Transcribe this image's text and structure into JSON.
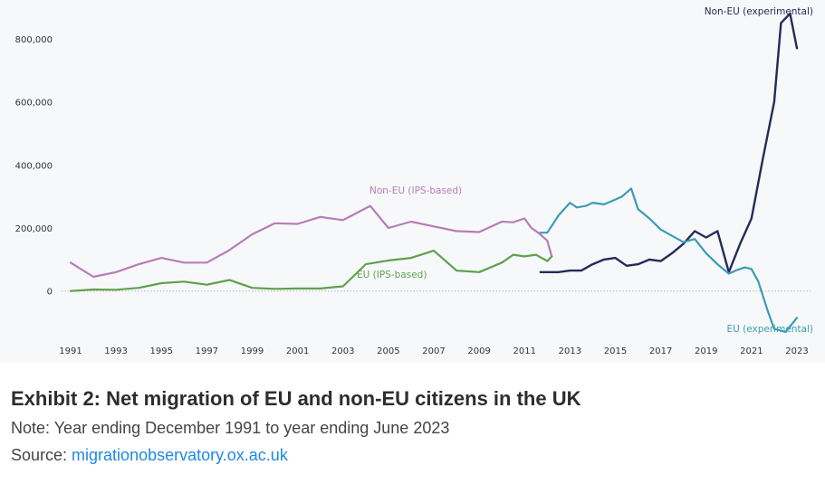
{
  "caption": {
    "title": "Exhibit 2: Net migration of EU and non-EU citizens in the UK",
    "note": "Note: Year ending December 1991 to year ending June 2023",
    "source_prefix": "Source: ",
    "source_link": "migrationobservatory.ox.ac.uk"
  },
  "chart_data": {
    "type": "line",
    "title": "",
    "xlabel": "",
    "ylabel": "",
    "xlim": [
      1990.6,
      2023.6
    ],
    "ylim": [
      -150000,
      900000
    ],
    "yticks": [
      0,
      200000,
      400000,
      600000,
      800000
    ],
    "ytick_labels": [
      "0",
      "200,000",
      "400,000",
      "600,000",
      "800,000"
    ],
    "xticks": [
      1991,
      1993,
      1995,
      1997,
      1999,
      2001,
      2003,
      2005,
      2007,
      2009,
      2011,
      2013,
      2015,
      2017,
      2019,
      2021,
      2023
    ],
    "grid": false,
    "legend": "none",
    "series": [
      {
        "name": "Non-EU (IPS-based)",
        "color": "#b77db6",
        "x": [
          1991,
          1992,
          1993,
          1994,
          1995,
          1996,
          1997,
          1998,
          1999,
          2000,
          2001,
          2002,
          2003,
          2004.2,
          2005,
          2006,
          2007,
          2008,
          2009,
          2010,
          2010.5,
          2011,
          2011.3,
          2011.6,
          2012,
          2012.2
        ],
        "y": [
          90000,
          45000,
          60000,
          85000,
          105000,
          90000,
          90000,
          130000,
          180000,
          215000,
          213000,
          235000,
          225000,
          270000,
          200000,
          220000,
          205000,
          190000,
          187000,
          220000,
          218000,
          230000,
          200000,
          185000,
          160000,
          110000
        ]
      },
      {
        "name": "EU (IPS-based)",
        "color": "#5fa14e",
        "x": [
          1991,
          1992,
          1993,
          1994,
          1995,
          1996,
          1997,
          1998,
          1999,
          2000,
          2001,
          2002,
          2003,
          2004,
          2005,
          2006,
          2007,
          2008,
          2009,
          2010,
          2010.5,
          2011,
          2011.5,
          2012,
          2012.2
        ],
        "y": [
          0,
          5000,
          4000,
          10000,
          25000,
          30000,
          20000,
          35000,
          10000,
          7000,
          8000,
          8000,
          15000,
          85000,
          97000,
          105000,
          128000,
          65000,
          60000,
          90000,
          115000,
          110000,
          115000,
          95000,
          110000
        ]
      },
      {
        "name": "Non-EU (experimental)",
        "color": "#242c59",
        "x": [
          2011.7,
          2012,
          2012.5,
          2013,
          2013.5,
          2014,
          2014.5,
          2015,
          2015.5,
          2016,
          2016.5,
          2017,
          2017.5,
          2018,
          2018.5,
          2019,
          2019.5,
          2020,
          2020.5,
          2021,
          2021.5,
          2022,
          2022.3,
          2022.7,
          2023
        ],
        "y": [
          60000,
          60000,
          60000,
          65000,
          65000,
          85000,
          100000,
          105000,
          80000,
          85000,
          100000,
          95000,
          120000,
          150000,
          190000,
          170000,
          190000,
          60000,
          150000,
          230000,
          420000,
          600000,
          850000,
          880000,
          770000
        ]
      },
      {
        "name": "EU (experimental)",
        "color": "#3c9cb5",
        "x": [
          2011.7,
          2012,
          2012.5,
          2013,
          2013.3,
          2013.7,
          2014,
          2014.5,
          2015,
          2015.3,
          2015.7,
          2016,
          2016.5,
          2017,
          2017.5,
          2018,
          2018.5,
          2019,
          2019.5,
          2020,
          2020.3,
          2020.7,
          2021,
          2021.3,
          2021.7,
          2022,
          2022.5,
          2023
        ],
        "y": [
          185000,
          185000,
          240000,
          280000,
          265000,
          270000,
          280000,
          275000,
          290000,
          300000,
          325000,
          260000,
          230000,
          195000,
          175000,
          155000,
          165000,
          120000,
          85000,
          55000,
          65000,
          75000,
          70000,
          30000,
          -60000,
          -120000,
          -130000,
          -85000
        ]
      }
    ],
    "annotations": [
      {
        "text": "Non-EU (IPS-based)",
        "series": 0
      },
      {
        "text": "EU (IPS-based)",
        "series": 1
      },
      {
        "text": "Non-EU (experimental)",
        "series": 2
      },
      {
        "text": "EU (experimental)",
        "series": 3
      }
    ]
  }
}
